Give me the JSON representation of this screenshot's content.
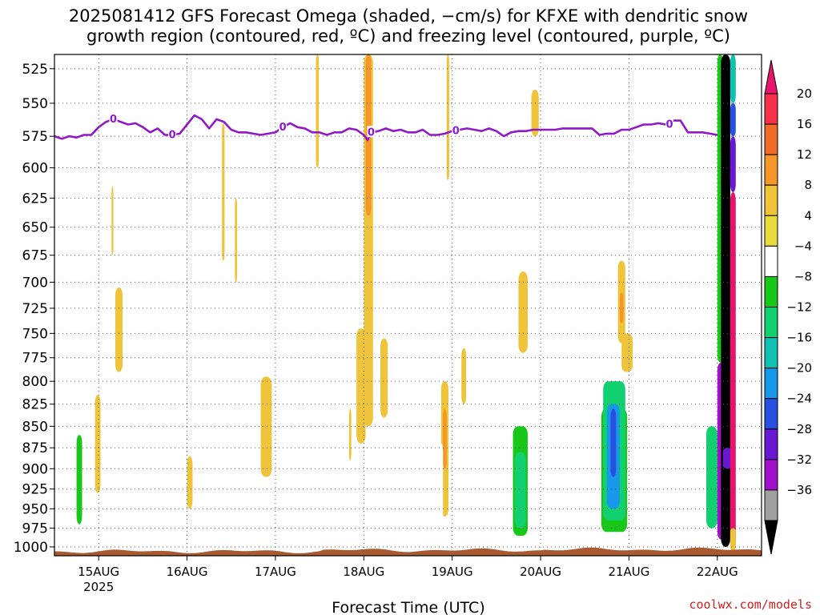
{
  "title_line1": "2025081412 GFS Forecast Omega (shaded, −cm/s) for KFXE with dendritic snow",
  "title_line2": "growth region (contoured, red, ºC) and freezing level (contoured, purple, ºC)",
  "credit": "coolwx.com/models",
  "chart_data": {
    "type": "heatmap",
    "title": "2025081412 GFS Forecast Omega (shaded, −cm/s) for KFXE with dendritic snow growth region (contoured, red, ºC) and freezing level (contoured, purple, ºC)",
    "xlabel": "Forecast Time (UTC)",
    "ylabel": "",
    "x_range_hours": [
      -12,
      180
    ],
    "y_range_hpa": [
      515,
      1012
    ],
    "y_scale": "log",
    "grid": true,
    "x_ticks": [
      {
        "hour": 0,
        "label": "15AUG",
        "sublabel": "2025"
      },
      {
        "hour": 24,
        "label": "16AUG"
      },
      {
        "hour": 48,
        "label": "17AUG"
      },
      {
        "hour": 72,
        "label": "18AUG"
      },
      {
        "hour": 96,
        "label": "19AUG"
      },
      {
        "hour": 120,
        "label": "20AUG"
      },
      {
        "hour": 144,
        "label": "21AUG"
      },
      {
        "hour": 168,
        "label": "22AUG"
      }
    ],
    "y_ticks": [
      525,
      550,
      575,
      600,
      625,
      650,
      675,
      700,
      725,
      750,
      775,
      800,
      825,
      850,
      875,
      900,
      925,
      950,
      975,
      1000
    ],
    "colorbar": {
      "ticks": [
        "20",
        "16",
        "12",
        "8",
        "4",
        "−4",
        "−8",
        "−12",
        "−16",
        "−20",
        "−24",
        "−28",
        "−32",
        "−36"
      ],
      "colors_top_to_bottom": [
        "#f8304a",
        "#f06a28",
        "#f4962a",
        "#f0c43a",
        "#e8dc3c",
        "#ffffff",
        "#18c818",
        "#10d070",
        "#10c0b0",
        "#1898e8",
        "#2850e0",
        "#6818d0",
        "#a010c8",
        "#a0a0a0"
      ],
      "top_arrow_color": "#e8146c",
      "bottom_arrow_color": "#000000"
    },
    "freezing_level": {
      "label": "0",
      "color": "#9018c8",
      "points_hour_hpa": [
        [
          -12,
          575
        ],
        [
          -10,
          577
        ],
        [
          -8,
          575
        ],
        [
          -6,
          576
        ],
        [
          -4,
          574
        ],
        [
          -2,
          574
        ],
        [
          0,
          568
        ],
        [
          2,
          564
        ],
        [
          4,
          562
        ],
        [
          6,
          564
        ],
        [
          8,
          566
        ],
        [
          10,
          565
        ],
        [
          12,
          568
        ],
        [
          14,
          572
        ],
        [
          16,
          569
        ],
        [
          18,
          574
        ],
        [
          20,
          574
        ],
        [
          22,
          573
        ],
        [
          24,
          566
        ],
        [
          26,
          559
        ],
        [
          28,
          562
        ],
        [
          30,
          569
        ],
        [
          32,
          562
        ],
        [
          34,
          564
        ],
        [
          36,
          570
        ],
        [
          38,
          572
        ],
        [
          40,
          572
        ],
        [
          42,
          573
        ],
        [
          44,
          574
        ],
        [
          46,
          573
        ],
        [
          48,
          572
        ],
        [
          50,
          568
        ],
        [
          52,
          565
        ],
        [
          54,
          568
        ],
        [
          56,
          569
        ],
        [
          58,
          572
        ],
        [
          60,
          572
        ],
        [
          62,
          574
        ],
        [
          64,
          572
        ],
        [
          66,
          572
        ],
        [
          68,
          569
        ],
        [
          70,
          570
        ],
        [
          72,
          574
        ],
        [
          73,
          578
        ],
        [
          74,
          572
        ],
        [
          76,
          571
        ],
        [
          78,
          569
        ],
        [
          80,
          571
        ],
        [
          82,
          570
        ],
        [
          84,
          572
        ],
        [
          86,
          572
        ],
        [
          88,
          570
        ],
        [
          90,
          574
        ],
        [
          92,
          574
        ],
        [
          94,
          573
        ],
        [
          96,
          571
        ],
        [
          98,
          570
        ],
        [
          100,
          569
        ],
        [
          102,
          570
        ],
        [
          104,
          571
        ],
        [
          106,
          569
        ],
        [
          108,
          571
        ],
        [
          110,
          575
        ],
        [
          112,
          572
        ],
        [
          114,
          571
        ],
        [
          116,
          571
        ],
        [
          118,
          570
        ],
        [
          120,
          570
        ],
        [
          122,
          570
        ],
        [
          124,
          570
        ],
        [
          126,
          569
        ],
        [
          128,
          569
        ],
        [
          130,
          569
        ],
        [
          132,
          569
        ],
        [
          134,
          569
        ],
        [
          136,
          574
        ],
        [
          138,
          573
        ],
        [
          140,
          573
        ],
        [
          142,
          570
        ],
        [
          144,
          570
        ],
        [
          146,
          568
        ],
        [
          148,
          566
        ],
        [
          150,
          566
        ],
        [
          152,
          565
        ],
        [
          154,
          566
        ],
        [
          156,
          563
        ],
        [
          158,
          563
        ],
        [
          160,
          572
        ],
        [
          162,
          572
        ],
        [
          164,
          572
        ],
        [
          166,
          573
        ],
        [
          168,
          574
        ]
      ],
      "label_hours": [
        4,
        20,
        50,
        74,
        97,
        155
      ]
    },
    "omega_regions": [
      {
        "h0": 72,
        "h1": 74.5,
        "p0": 515,
        "p1": 850,
        "value": 8
      },
      {
        "h0": 72.5,
        "h1": 74,
        "p0": 515,
        "p1": 640,
        "value": 12
      },
      {
        "h0": 70,
        "h1": 72.5,
        "p0": 745,
        "p1": 870,
        "value": 6
      },
      {
        "h0": 76.5,
        "h1": 78.5,
        "p0": 755,
        "p1": 840,
        "value": 6
      },
      {
        "h0": 59,
        "h1": 59.8,
        "p0": 515,
        "p1": 600,
        "value": 5
      },
      {
        "h0": 94.5,
        "h1": 95.2,
        "p0": 515,
        "p1": 610,
        "value": 5
      },
      {
        "h0": 33.5,
        "h1": 34.2,
        "p0": 565,
        "p1": 680,
        "value": 5
      },
      {
        "h0": 37,
        "h1": 37.6,
        "p0": 625,
        "p1": 700,
        "value": 5
      },
      {
        "h0": 3.5,
        "h1": 4,
        "p0": 615,
        "p1": 675,
        "value": 5
      },
      {
        "h0": 117.5,
        "h1": 119.5,
        "p0": 540,
        "p1": 575,
        "value": 5
      },
      {
        "h0": 4.5,
        "h1": 6.5,
        "p0": 705,
        "p1": 790,
        "value": 5
      },
      {
        "h0": -1,
        "h1": 0.5,
        "p0": 815,
        "p1": 930,
        "value": 5
      },
      {
        "h0": 44,
        "h1": 47,
        "p0": 795,
        "p1": 910,
        "value": 6
      },
      {
        "h0": 24,
        "h1": 25.5,
        "p0": 885,
        "p1": 950,
        "value": 5
      },
      {
        "h0": 68,
        "h1": 68.6,
        "p0": 830,
        "p1": 890,
        "value": 5
      },
      {
        "h0": 93,
        "h1": 95,
        "p0": 800,
        "p1": 960,
        "value": 6
      },
      {
        "h0": 93.5,
        "h1": 94.5,
        "p0": 830,
        "p1": 900,
        "value": 9
      },
      {
        "h0": 98.5,
        "h1": 99.8,
        "p0": 765,
        "p1": 825,
        "value": 5
      },
      {
        "h0": 114,
        "h1": 116.5,
        "p0": 690,
        "p1": 770,
        "value": 5
      },
      {
        "h0": 141,
        "h1": 143,
        "p0": 680,
        "p1": 760,
        "value": 6
      },
      {
        "h0": 141.5,
        "h1": 142.5,
        "p0": 710,
        "p1": 740,
        "value": 9
      },
      {
        "h0": 142,
        "h1": 145,
        "p0": 750,
        "p1": 790,
        "value": 5
      },
      {
        "h0": -11.5,
        "h1": -10.5,
        "p0": 515,
        "p1": 905,
        "value": -5
      },
      {
        "h0": 14,
        "h1": 14.5,
        "p0": 555,
        "p1": 565,
        "value": -5
      },
      {
        "h0": 29,
        "h1": 29.4,
        "p0": 745,
        "p1": 815,
        "value": -5
      },
      {
        "h0": 3,
        "h1": 3.6,
        "p0": 850,
        "p1": 875,
        "value": -5
      },
      {
        "h0": 75.5,
        "h1": 76,
        "p0": 515,
        "p1": 530,
        "value": -5
      },
      {
        "h0": 71,
        "h1": 71.4,
        "p0": 600,
        "p1": 606,
        "value": -5
      },
      {
        "h0": 80,
        "h1": 80.4,
        "p0": 810,
        "p1": 870,
        "value": -5
      },
      {
        "h0": 92.5,
        "h1": 93.5,
        "p0": 870,
        "p1": 975,
        "value": -5
      },
      {
        "h0": -6.5,
        "h1": -3.5,
        "p0": 780,
        "p1": 990,
        "value": -6
      },
      {
        "h0": -6,
        "h1": -4.5,
        "p0": 860,
        "p1": 970,
        "value": -10
      },
      {
        "h0": 112,
        "h1": 117,
        "p0": 790,
        "p1": 995,
        "value": -6
      },
      {
        "h0": 112.5,
        "h1": 116.5,
        "p0": 850,
        "p1": 985,
        "value": -10
      },
      {
        "h0": 113,
        "h1": 116,
        "p0": 880,
        "p1": 975,
        "value": -14
      },
      {
        "h0": 136,
        "h1": 144.5,
        "p0": 820,
        "p1": 990,
        "value": -6
      },
      {
        "h0": 144.5,
        "h1": 146,
        "p0": 870,
        "p1": 905,
        "value": -6
      },
      {
        "h0": 136.5,
        "h1": 143.5,
        "p0": 830,
        "p1": 980,
        "value": -10
      },
      {
        "h0": 137,
        "h1": 143,
        "p0": 800,
        "p1": 965,
        "value": -14
      },
      {
        "h0": 138,
        "h1": 141.5,
        "p0": 825,
        "p1": 950,
        "value": -20
      },
      {
        "h0": 139,
        "h1": 140.5,
        "p0": 830,
        "p1": 910,
        "value": -26
      },
      {
        "h0": 164,
        "h1": 168,
        "p0": 780,
        "p1": 995,
        "value": -6
      },
      {
        "h0": 165,
        "h1": 168,
        "p0": 850,
        "p1": 975,
        "value": -14
      },
      {
        "h0": 168,
        "h1": 169.5,
        "p0": 515,
        "p1": 780,
        "value": -10
      },
      {
        "h0": 168,
        "h1": 170,
        "p0": 780,
        "p1": 990,
        "value": -34
      },
      {
        "h0": 169,
        "h1": 171.5,
        "p0": 515,
        "p1": 1000,
        "value": -40
      },
      {
        "h0": 169.5,
        "h1": 172,
        "p0": 875,
        "p1": 900,
        "value": -30
      },
      {
        "h0": 171.5,
        "h1": 173,
        "p0": 515,
        "p1": 550,
        "value": -16
      },
      {
        "h0": 171.5,
        "h1": 173,
        "p0": 550,
        "p1": 575,
        "value": -24
      },
      {
        "h0": 171.5,
        "h1": 173,
        "p0": 575,
        "p1": 620,
        "value": -30
      },
      {
        "h0": 171.5,
        "h1": 173,
        "p0": 620,
        "p1": 1005,
        "value": 24
      },
      {
        "h0": 171.5,
        "h1": 173,
        "p0": 975,
        "p1": 1005,
        "value": 8
      }
    ],
    "surface_terrain": {
      "color": "#a85a30"
    }
  }
}
